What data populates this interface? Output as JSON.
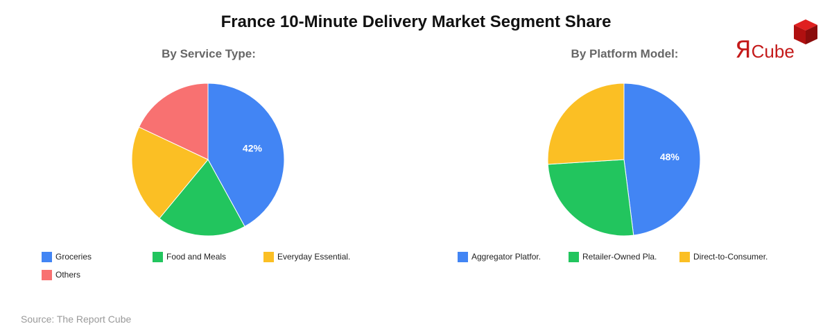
{
  "title": "France 10-Minute Delivery Market Segment Share",
  "logo": {
    "text": "Cube",
    "mark": "Я",
    "icon": "red-cube-icon"
  },
  "source": "Source: The Report Cube",
  "colors": {
    "blue": "#4285f4",
    "green": "#22c55e",
    "yellow": "#fbbf24",
    "red": "#f87171"
  },
  "chart_data": [
    {
      "type": "pie",
      "title": "By Service Type:",
      "slices": [
        {
          "label": "Groceries",
          "value": 42,
          "color": "#4285f4",
          "data_label": "42%"
        },
        {
          "label": "Food and Meals",
          "value": 19,
          "color": "#22c55e"
        },
        {
          "label": "Everyday Essential.",
          "value": 21,
          "color": "#fbbf24"
        },
        {
          "label": "Others",
          "value": 18,
          "color": "#f87171"
        }
      ]
    },
    {
      "type": "pie",
      "title": "By Platform Model:",
      "slices": [
        {
          "label": "Aggregator Platfor.",
          "value": 48,
          "color": "#4285f4",
          "data_label": "48%"
        },
        {
          "label": "Retailer-Owned Pla.",
          "value": 26,
          "color": "#22c55e"
        },
        {
          "label": "Direct-to-Consumer.",
          "value": 26,
          "color": "#fbbf24"
        }
      ]
    }
  ]
}
